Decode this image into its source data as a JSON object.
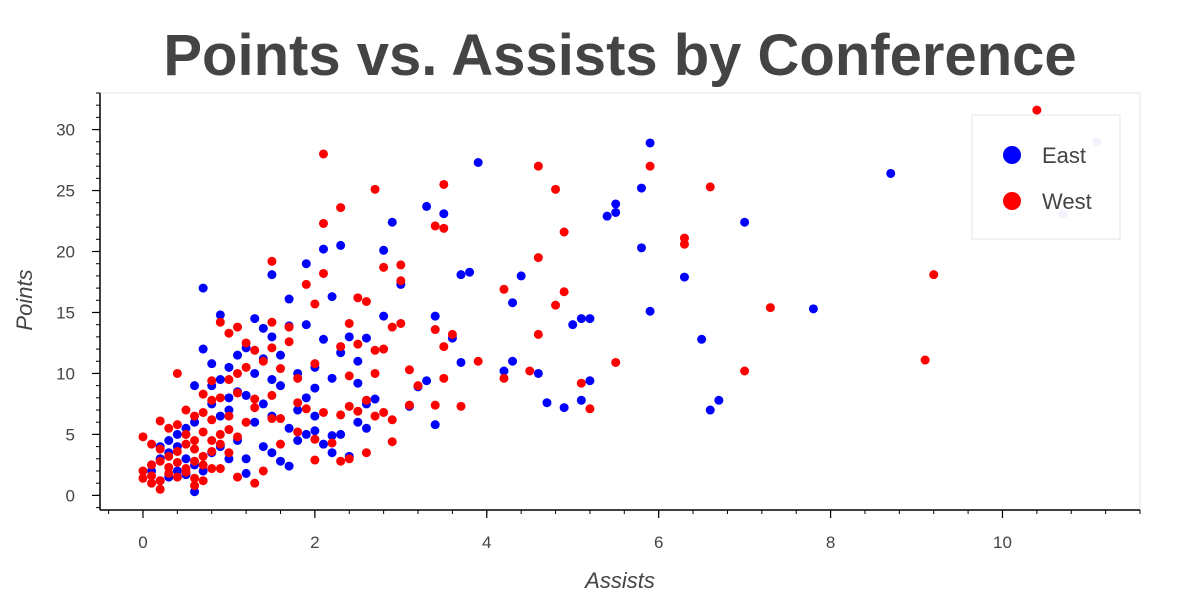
{
  "chart_data": {
    "type": "scatter",
    "title": "Points vs. Assists by Conference",
    "xlabel": "Assists",
    "ylabel": "Points",
    "xlim": [
      -0.5,
      11.6
    ],
    "ylim": [
      -1.2,
      33
    ],
    "x_ticks": [
      0,
      2,
      4,
      6,
      8,
      10
    ],
    "y_ticks": [
      0,
      5,
      10,
      15,
      20,
      25,
      30
    ],
    "grid": true,
    "legend_position": "top-right",
    "series": [
      {
        "name": "East",
        "color": "#0000ff",
        "points": [
          [
            5.9,
            28.9
          ],
          [
            3.9,
            27.3
          ],
          [
            8.7,
            26.4
          ],
          [
            5.8,
            25.2
          ],
          [
            5.5,
            23.9
          ],
          [
            5.4,
            22.9
          ],
          [
            5.5,
            23.2
          ],
          [
            3.5,
            23.1
          ],
          [
            3.3,
            23.7
          ],
          [
            7.0,
            22.4
          ],
          [
            2.9,
            22.4
          ],
          [
            11.1,
            29.0
          ],
          [
            10.7,
            23.1
          ],
          [
            2.3,
            20.5
          ],
          [
            2.1,
            20.2
          ],
          [
            2.8,
            20.1
          ],
          [
            5.8,
            20.3
          ],
          [
            1.9,
            19.0
          ],
          [
            3.7,
            18.1
          ],
          [
            3.8,
            18.3
          ],
          [
            4.4,
            18.0
          ],
          [
            6.3,
            17.9
          ],
          [
            3.0,
            17.3
          ],
          [
            0.7,
            17.0
          ],
          [
            1.5,
            18.1
          ],
          [
            1.7,
            16.1
          ],
          [
            2.2,
            16.3
          ],
          [
            4.3,
            15.8
          ],
          [
            5.9,
            15.1
          ],
          [
            7.8,
            15.3
          ],
          [
            5.1,
            14.5
          ],
          [
            5.2,
            14.5
          ],
          [
            5.0,
            14.0
          ],
          [
            2.8,
            14.7
          ],
          [
            3.4,
            14.7
          ],
          [
            2.6,
            12.9
          ],
          [
            2.4,
            13.0
          ],
          [
            3.6,
            12.9
          ],
          [
            6.5,
            12.8
          ],
          [
            0.9,
            14.8
          ],
          [
            1.3,
            14.5
          ],
          [
            1.4,
            13.7
          ],
          [
            1.9,
            14.0
          ],
          [
            1.5,
            13.0
          ],
          [
            1.2,
            12.1
          ],
          [
            0.8,
            10.8
          ],
          [
            0.7,
            12.0
          ],
          [
            1.1,
            11.5
          ],
          [
            1.4,
            11.2
          ],
          [
            1.6,
            11.5
          ],
          [
            1.7,
            13.9
          ],
          [
            2.1,
            12.8
          ],
          [
            2.3,
            11.7
          ],
          [
            2.5,
            11.0
          ],
          [
            3.7,
            10.9
          ],
          [
            4.3,
            11.0
          ],
          [
            4.2,
            10.2
          ],
          [
            4.6,
            10.0
          ],
          [
            5.2,
            9.4
          ],
          [
            3.3,
            9.4
          ],
          [
            3.2,
            8.9
          ],
          [
            3.1,
            7.3
          ],
          [
            4.7,
            7.6
          ],
          [
            4.9,
            7.2
          ],
          [
            5.1,
            7.8
          ],
          [
            6.7,
            7.8
          ],
          [
            6.6,
            7.0
          ],
          [
            2.2,
            9.6
          ],
          [
            2.0,
            10.5
          ],
          [
            1.8,
            10.0
          ],
          [
            1.6,
            9.0
          ],
          [
            1.5,
            9.5
          ],
          [
            1.3,
            10.0
          ],
          [
            1.0,
            10.5
          ],
          [
            0.9,
            9.5
          ],
          [
            0.8,
            9.0
          ],
          [
            0.6,
            9.0
          ],
          [
            1.1,
            8.5
          ],
          [
            1.0,
            8.0
          ],
          [
            1.2,
            8.2
          ],
          [
            1.4,
            7.5
          ],
          [
            1.9,
            8.0
          ],
          [
            2.0,
            8.8
          ],
          [
            2.5,
            9.2
          ],
          [
            2.6,
            7.5
          ],
          [
            2.7,
            7.9
          ],
          [
            2.0,
            6.5
          ],
          [
            1.8,
            7.0
          ],
          [
            1.5,
            6.5
          ],
          [
            1.3,
            6.0
          ],
          [
            1.7,
            5.5
          ],
          [
            1.9,
            5.0
          ],
          [
            2.0,
            5.3
          ],
          [
            2.2,
            4.9
          ],
          [
            2.3,
            5.0
          ],
          [
            2.5,
            6.0
          ],
          [
            2.6,
            5.5
          ],
          [
            3.4,
            5.8
          ],
          [
            0.6,
            6.0
          ],
          [
            0.5,
            5.5
          ],
          [
            0.4,
            5.0
          ],
          [
            0.3,
            4.5
          ],
          [
            0.2,
            4.0
          ],
          [
            0.2,
            3.0
          ],
          [
            0.1,
            2.5
          ],
          [
            0.1,
            2.0
          ],
          [
            0.3,
            3.5
          ],
          [
            0.4,
            4.0
          ],
          [
            0.5,
            3.0
          ],
          [
            0.6,
            2.5
          ],
          [
            0.7,
            2.0
          ],
          [
            0.8,
            3.5
          ],
          [
            0.9,
            4.0
          ],
          [
            1.0,
            3.0
          ],
          [
            1.1,
            4.5
          ],
          [
            1.2,
            3.0
          ],
          [
            1.4,
            4.0
          ],
          [
            1.5,
            3.5
          ],
          [
            1.6,
            2.8
          ],
          [
            1.7,
            2.4
          ],
          [
            1.2,
            1.8
          ],
          [
            0.6,
            0.3
          ],
          [
            0.3,
            1.5
          ],
          [
            0.2,
            1.2
          ],
          [
            0.4,
            2.0
          ],
          [
            0.5,
            1.7
          ],
          [
            2.1,
            4.2
          ],
          [
            2.2,
            3.5
          ],
          [
            2.4,
            3.2
          ],
          [
            1.8,
            4.5
          ],
          [
            0.9,
            6.5
          ],
          [
            1.0,
            7.0
          ],
          [
            0.8,
            7.5
          ]
        ]
      },
      {
        "name": "West",
        "color": "#ff0000",
        "points": [
          [
            10.4,
            31.6
          ],
          [
            2.1,
            28.0
          ],
          [
            4.6,
            27.0
          ],
          [
            5.9,
            27.0
          ],
          [
            3.5,
            25.5
          ],
          [
            4.8,
            25.1
          ],
          [
            6.6,
            25.3
          ],
          [
            2.7,
            25.1
          ],
          [
            2.3,
            23.6
          ],
          [
            2.1,
            22.3
          ],
          [
            3.4,
            22.1
          ],
          [
            3.5,
            21.9
          ],
          [
            4.9,
            21.6
          ],
          [
            6.3,
            21.1
          ],
          [
            6.3,
            20.6
          ],
          [
            4.6,
            19.5
          ],
          [
            1.5,
            19.2
          ],
          [
            2.8,
            18.7
          ],
          [
            3.0,
            18.9
          ],
          [
            2.1,
            18.2
          ],
          [
            9.2,
            18.1
          ],
          [
            1.9,
            17.3
          ],
          [
            4.2,
            16.9
          ],
          [
            3.0,
            17.6
          ],
          [
            4.9,
            16.7
          ],
          [
            2.0,
            15.7
          ],
          [
            2.5,
            16.2
          ],
          [
            2.6,
            15.9
          ],
          [
            4.8,
            15.6
          ],
          [
            7.3,
            15.4
          ],
          [
            0.9,
            14.2
          ],
          [
            1.1,
            13.8
          ],
          [
            1.5,
            14.2
          ],
          [
            1.7,
            13.8
          ],
          [
            2.4,
            14.1
          ],
          [
            2.9,
            13.8
          ],
          [
            3.0,
            14.1
          ],
          [
            3.4,
            13.6
          ],
          [
            3.6,
            13.2
          ],
          [
            4.6,
            13.2
          ],
          [
            1.0,
            13.3
          ],
          [
            1.2,
            12.5
          ],
          [
            1.3,
            11.9
          ],
          [
            1.5,
            12.1
          ],
          [
            1.7,
            12.6
          ],
          [
            2.3,
            12.2
          ],
          [
            2.5,
            12.4
          ],
          [
            2.7,
            11.9
          ],
          [
            2.8,
            12.0
          ],
          [
            3.5,
            12.2
          ],
          [
            9.1,
            11.1
          ],
          [
            5.5,
            10.9
          ],
          [
            3.9,
            11.0
          ],
          [
            4.5,
            10.2
          ],
          [
            4.2,
            9.6
          ],
          [
            3.5,
            9.6
          ],
          [
            7.0,
            10.2
          ],
          [
            5.1,
            9.2
          ],
          [
            3.2,
            9.0
          ],
          [
            0.4,
            10.0
          ],
          [
            0.8,
            9.4
          ],
          [
            1.0,
            9.5
          ],
          [
            1.1,
            10.0
          ],
          [
            1.2,
            10.5
          ],
          [
            1.4,
            11.0
          ],
          [
            1.6,
            10.4
          ],
          [
            1.8,
            9.6
          ],
          [
            2.0,
            10.8
          ],
          [
            2.4,
            9.8
          ],
          [
            2.7,
            10.0
          ],
          [
            3.1,
            10.3
          ],
          [
            0.7,
            8.3
          ],
          [
            0.8,
            7.8
          ],
          [
            0.9,
            8.0
          ],
          [
            1.1,
            8.4
          ],
          [
            1.3,
            7.9
          ],
          [
            1.5,
            8.2
          ],
          [
            1.8,
            7.6
          ],
          [
            1.9,
            7.1
          ],
          [
            2.1,
            6.8
          ],
          [
            2.4,
            7.3
          ],
          [
            2.6,
            7.8
          ],
          [
            2.7,
            6.5
          ],
          [
            3.1,
            7.4
          ],
          [
            3.4,
            7.4
          ],
          [
            3.7,
            7.3
          ],
          [
            5.2,
            7.1
          ],
          [
            0.5,
            7.0
          ],
          [
            0.6,
            6.5
          ],
          [
            0.7,
            6.8
          ],
          [
            0.8,
            6.2
          ],
          [
            1.0,
            6.5
          ],
          [
            1.2,
            6.0
          ],
          [
            1.3,
            7.2
          ],
          [
            1.5,
            6.3
          ],
          [
            1.6,
            6.3
          ],
          [
            2.3,
            6.6
          ],
          [
            2.5,
            6.9
          ],
          [
            2.8,
            6.8
          ],
          [
            2.9,
            6.2
          ],
          [
            0.2,
            6.1
          ],
          [
            0.3,
            5.5
          ],
          [
            0.4,
            5.8
          ],
          [
            0.5,
            5.0
          ],
          [
            0.6,
            4.5
          ],
          [
            0.7,
            5.2
          ],
          [
            0.8,
            4.5
          ],
          [
            0.9,
            5.0
          ],
          [
            1.0,
            5.4
          ],
          [
            1.1,
            4.8
          ],
          [
            1.6,
            4.2
          ],
          [
            2.0,
            4.6
          ],
          [
            2.2,
            4.3
          ],
          [
            2.6,
            3.5
          ],
          [
            2.4,
            3.0
          ],
          [
            2.3,
            2.8
          ],
          [
            2.0,
            2.9
          ],
          [
            0.0,
            4.8
          ],
          [
            0.1,
            4.2
          ],
          [
            0.2,
            3.8
          ],
          [
            0.3,
            3.2
          ],
          [
            0.4,
            3.6
          ],
          [
            0.5,
            4.2
          ],
          [
            0.6,
            3.8
          ],
          [
            0.7,
            3.2
          ],
          [
            0.8,
            3.6
          ],
          [
            0.9,
            4.2
          ],
          [
            0.1,
            2.5
          ],
          [
            0.2,
            2.8
          ],
          [
            0.3,
            2.3
          ],
          [
            0.4,
            2.7
          ],
          [
            0.5,
            2.2
          ],
          [
            0.6,
            2.8
          ],
          [
            0.7,
            2.5
          ],
          [
            0.8,
            2.2
          ],
          [
            0.0,
            2.0
          ],
          [
            0.1,
            1.6
          ],
          [
            0.2,
            1.2
          ],
          [
            0.3,
            1.8
          ],
          [
            0.4,
            1.5
          ],
          [
            0.5,
            1.9
          ],
          [
            0.6,
            1.4
          ],
          [
            0.7,
            1.2
          ],
          [
            0.0,
            1.4
          ],
          [
            0.1,
            1.0
          ],
          [
            0.2,
            0.5
          ],
          [
            0.6,
            0.8
          ],
          [
            1.1,
            1.5
          ],
          [
            1.3,
            1.0
          ],
          [
            0.9,
            2.2
          ],
          [
            1.0,
            3.5
          ],
          [
            1.4,
            2.0
          ],
          [
            1.8,
            5.2
          ],
          [
            2.9,
            4.4
          ]
        ]
      }
    ]
  }
}
